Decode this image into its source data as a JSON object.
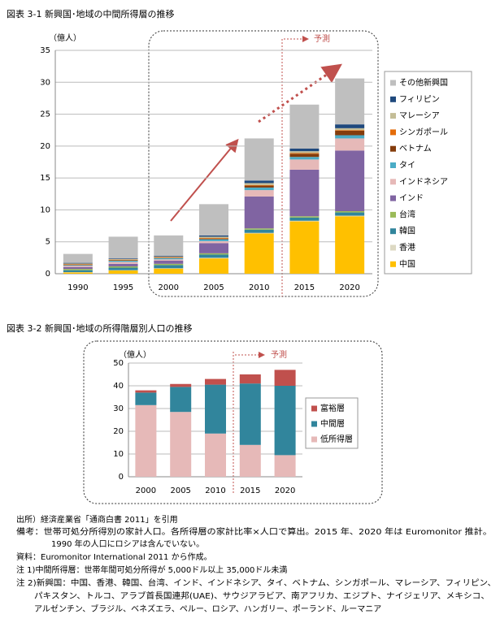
{
  "chart_data": [
    {
      "type": "bar",
      "stacked": true,
      "title": "図表 3-1  新興国･地域の中間所得層の推移",
      "y_label": "（億人）",
      "annotation": "予測",
      "categories": [
        "1990",
        "1995",
        "2000",
        "2005",
        "2010",
        "2015",
        "2020"
      ],
      "ylim": [
        0,
        35
      ],
      "yticks": [
        0,
        5,
        10,
        15,
        20,
        25,
        30,
        35
      ],
      "grid": true,
      "series": [
        {
          "name": "中国",
          "color": "#FFC000",
          "values": [
            0.2,
            0.5,
            0.8,
            2.4,
            6.3,
            8.2,
            9.0
          ]
        },
        {
          "name": "香港",
          "color": "#DDD9C3",
          "values": [
            0.05,
            0.05,
            0.05,
            0.1,
            0.1,
            0.1,
            0.1
          ]
        },
        {
          "name": "韓国",
          "color": "#31859C",
          "values": [
            0.3,
            0.4,
            0.5,
            0.5,
            0.5,
            0.5,
            0.5
          ]
        },
        {
          "name": "台湾",
          "color": "#9BBB59",
          "values": [
            0.2,
            0.2,
            0.2,
            0.2,
            0.2,
            0.2,
            0.2
          ]
        },
        {
          "name": "インド",
          "color": "#8064A2",
          "values": [
            0.3,
            0.4,
            0.5,
            1.6,
            5.0,
            7.3,
            9.5
          ]
        },
        {
          "name": "インドネシア",
          "color": "#E6B9B8",
          "values": [
            0.2,
            0.3,
            0.2,
            0.3,
            1.0,
            1.6,
            1.9
          ]
        },
        {
          "name": "タイ",
          "color": "#4BACC6",
          "values": [
            0.1,
            0.2,
            0.2,
            0.3,
            0.4,
            0.4,
            0.5
          ]
        },
        {
          "name": "ベトナム",
          "color": "#843C0C",
          "values": [
            0.05,
            0.05,
            0.05,
            0.1,
            0.3,
            0.5,
            0.7
          ]
        },
        {
          "name": "シンガポール",
          "color": "#E46C0A",
          "values": [
            0.1,
            0.1,
            0.1,
            0.1,
            0.1,
            0.1,
            0.1
          ]
        },
        {
          "name": "マレーシア",
          "color": "#C4BD97",
          "values": [
            0.1,
            0.1,
            0.1,
            0.2,
            0.3,
            0.3,
            0.3
          ]
        },
        {
          "name": "フィリピン",
          "color": "#1F497D",
          "values": [
            0.1,
            0.1,
            0.1,
            0.2,
            0.4,
            0.4,
            0.6
          ]
        },
        {
          "name": "その他新興国",
          "color": "#BFBFBF",
          "values": [
            1.4,
            3.4,
            3.2,
            4.9,
            6.6,
            6.9,
            7.2
          ]
        }
      ]
    },
    {
      "type": "bar",
      "stacked": true,
      "title": "図表 3-2  新興国･地域の所得階層別人口の推移",
      "y_label": "（億人）",
      "annotation": "予測",
      "categories": [
        "2000",
        "2005",
        "2010",
        "2015",
        "2020"
      ],
      "ylim": [
        0,
        50
      ],
      "yticks": [
        0,
        10,
        20,
        30,
        40,
        50
      ],
      "grid": true,
      "series": [
        {
          "name": "低所得層",
          "color": "#E6B9B8",
          "values": [
            31.5,
            28.5,
            19,
            14,
            9.5
          ]
        },
        {
          "name": "中間層",
          "color": "#31859C",
          "values": [
            5.5,
            11,
            21.5,
            27,
            30.5
          ]
        },
        {
          "name": "富裕層",
          "color": "#C0504D",
          "values": [
            1,
            1.3,
            2.5,
            4,
            7
          ]
        }
      ]
    }
  ],
  "notes": [
    "出所）経済産業省「通商白書 2011」を引用",
    "備考：世帯可処分所得別の家計人口。各所得層の家計比率×人口で算出。2015 年、2020 年は Euromonitor 推計。",
    "1990 年の人口にロシアは含んでいない。",
    "資料：Euromonitor International 2011 から作成。",
    "注 1)中間所得層：世帯年間可処分所得が 5,000ドル以上 35,000ドル未満",
    "注 2)新興国：中国、香港、韓国、台湾、インド、インドネシア、タイ、ベトナム、シンガポール、マレーシア、フィリピン、",
    "パキスタン、トルコ、アラブ首長国連邦(UAE)、サウジアラビア、南アフリカ、エジプト、ナイジェリア、メキシコ、",
    "アルゼンチン、ブラジル、ベネズエラ、ペルー、ロシア、ハンガリー、ポーランド、ルーマニア"
  ]
}
